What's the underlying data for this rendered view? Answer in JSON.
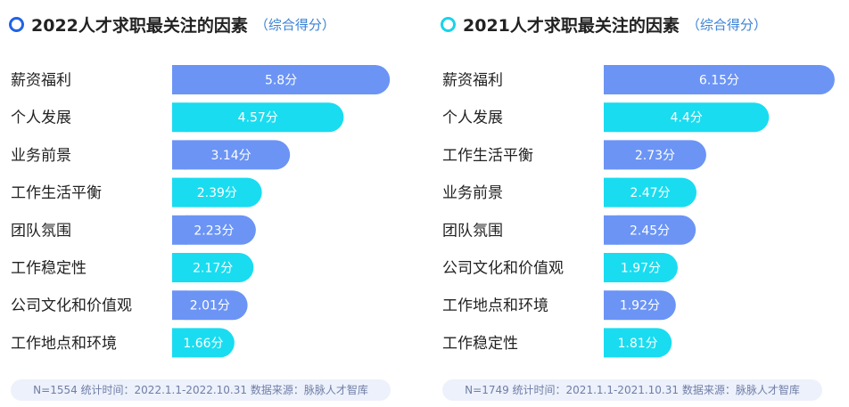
{
  "colors": {
    "blue": "#6b94f5",
    "cyan": "#19dcf0",
    "ring_blue": "#1f64e6",
    "ring_cyan": "#19d3e8",
    "subtitle": "#3b82d6"
  },
  "unit_suffix": "分",
  "chart_data": [
    {
      "type": "bar",
      "orientation": "horizontal",
      "title": "2022人才求职最关注的因素",
      "subtitle": "（综合得分）",
      "categories": [
        "薪资福利",
        "个人发展",
        "业务前景",
        "工作生活平衡",
        "团队氛围",
        "工作稳定性",
        "公司文化和价值观",
        "工作地点和环境"
      ],
      "values": [
        5.8,
        4.57,
        3.14,
        2.39,
        2.23,
        2.17,
        2.01,
        1.66
      ],
      "data_labels": [
        "5.8分",
        "4.57分",
        "3.14分",
        "2.39分",
        "2.23分",
        "2.17分",
        "2.01分",
        "1.66分"
      ],
      "bar_colors": [
        "#6b94f5",
        "#19dcf0",
        "#6b94f5",
        "#19dcf0",
        "#6b94f5",
        "#19dcf0",
        "#6b94f5",
        "#19dcf0"
      ],
      "footnote": "N=1554   统计时间：2022.1.1-2022.10.31   数据来源：脉脉人才智库",
      "xlabel": "",
      "ylabel": ""
    },
    {
      "type": "bar",
      "orientation": "horizontal",
      "title": "2021人才求职最关注的因素",
      "subtitle": "（综合得分）",
      "categories": [
        "薪资福利",
        "个人发展",
        "工作生活平衡",
        "业务前景",
        "团队氛围",
        "公司文化和价值观",
        "工作地点和环境",
        "工作稳定性"
      ],
      "values": [
        6.15,
        4.4,
        2.73,
        2.47,
        2.45,
        1.97,
        1.92,
        1.81
      ],
      "data_labels": [
        "6.15分",
        "4.4分",
        "2.73分",
        "2.47分",
        "2.45分",
        "1.97分",
        "1.92分",
        "1.81分"
      ],
      "bar_colors": [
        "#6b94f5",
        "#19dcf0",
        "#6b94f5",
        "#19dcf0",
        "#6b94f5",
        "#19dcf0",
        "#6b94f5",
        "#19dcf0"
      ],
      "footnote": "N=1749   统计时间：2021.1.1-2021.10.31   数据来源：脉脉人才智库",
      "xlabel": "",
      "ylabel": ""
    }
  ]
}
